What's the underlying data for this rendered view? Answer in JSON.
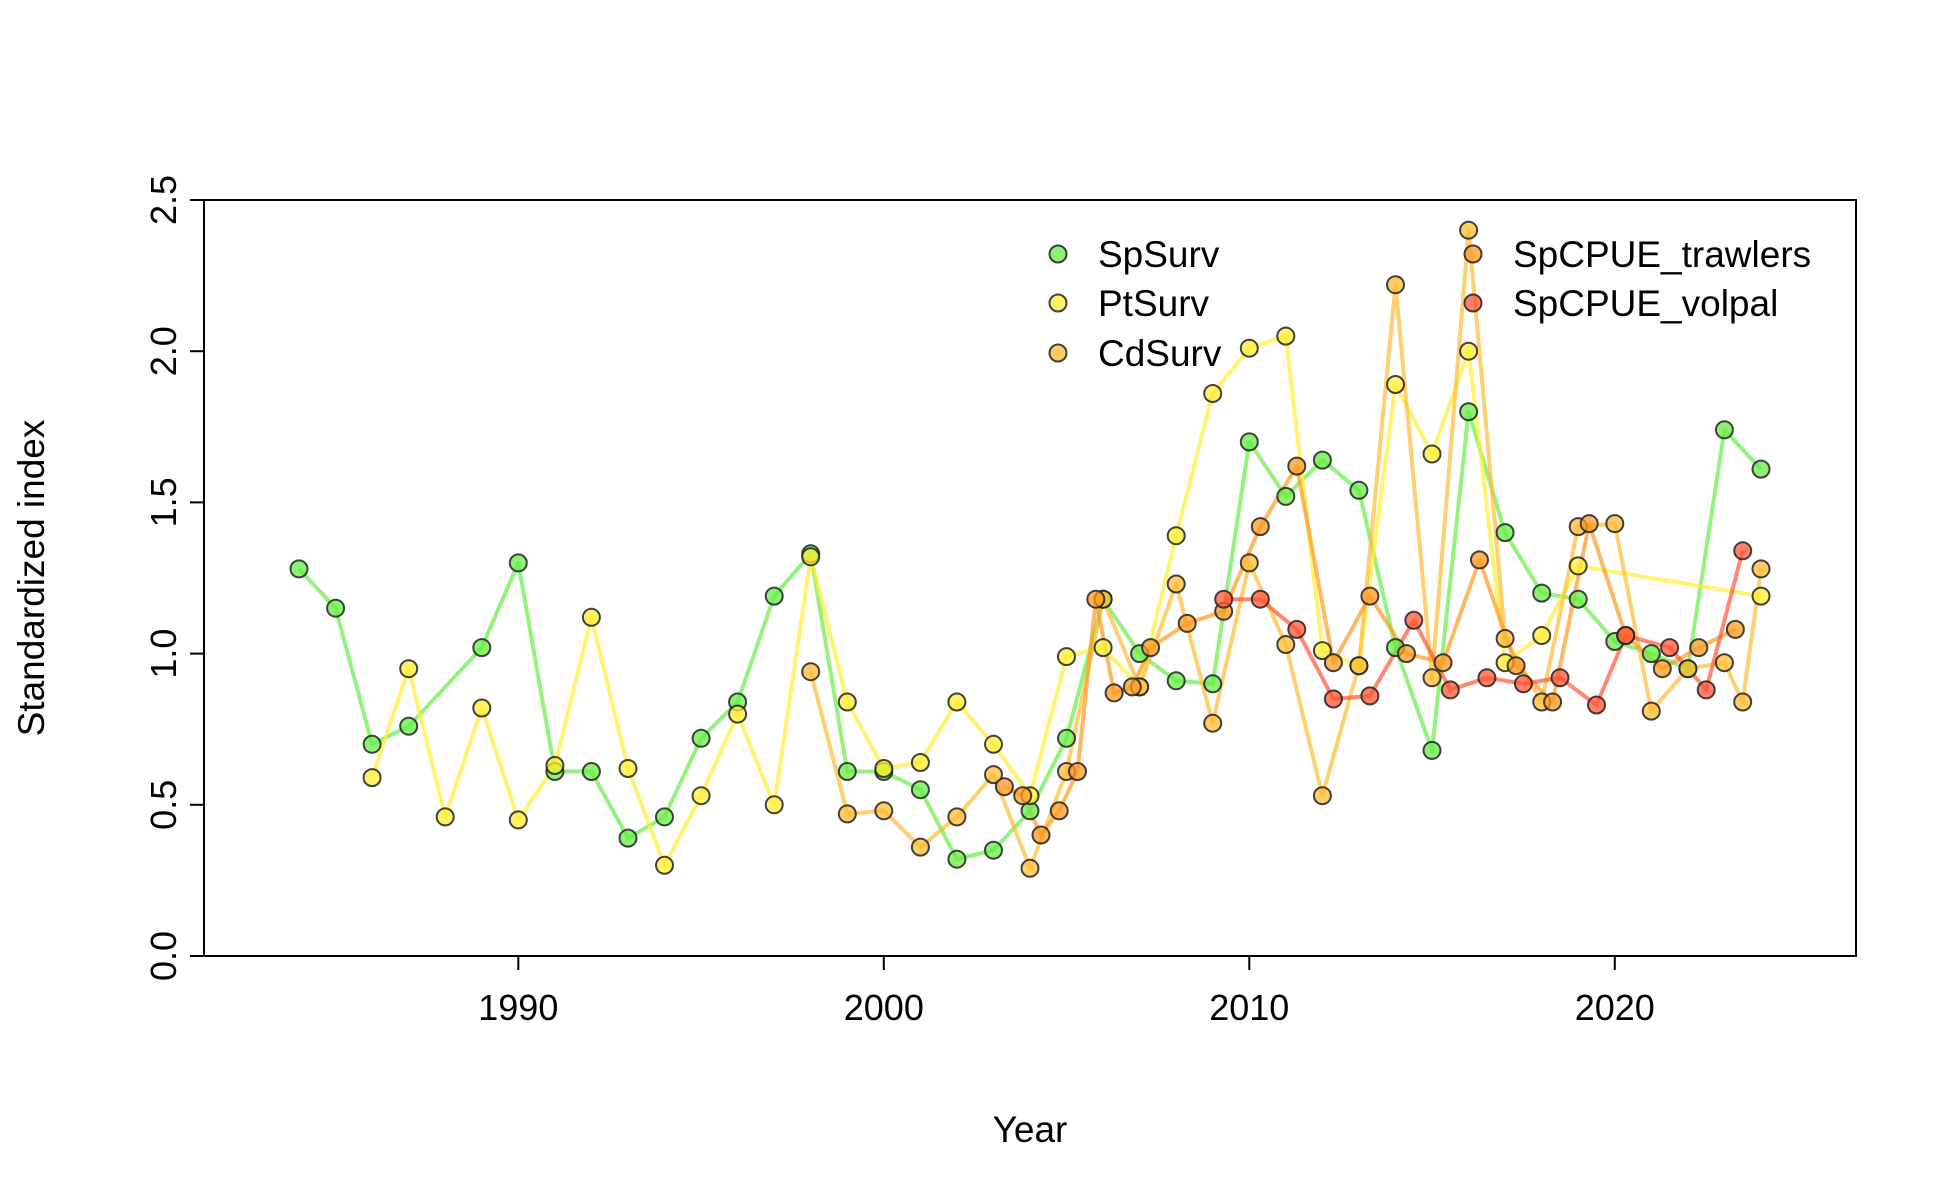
{
  "chart_data": {
    "type": "line",
    "title": "",
    "xlabel": "Year",
    "ylabel": "Standardized index",
    "xlim": [
      1981.4,
      2026.6
    ],
    "ylim": [
      0,
      2.5
    ],
    "x_ticks": [
      1990,
      2000,
      2010,
      2020
    ],
    "y_ticks": [
      0.0,
      0.5,
      1.0,
      1.5,
      2.0,
      2.5
    ],
    "x_tick_labels": [
      "1990",
      "2000",
      "2010",
      "2020"
    ],
    "y_tick_labels": [
      "0.0",
      "0.5",
      "1.0",
      "1.5",
      "2.0",
      "2.5"
    ],
    "grid": false,
    "legend_position": "top-right",
    "series": [
      {
        "name": "SpSurv",
        "color": "#66ee44",
        "x": [
          1984,
          1985,
          1986,
          1987,
          1989,
          1990,
          1991,
          1992,
          1993,
          1994,
          1995,
          1996,
          1997,
          1998,
          1999,
          2000,
          2001,
          2002,
          2003,
          2004,
          2005,
          2006,
          2007,
          2008,
          2009,
          2010,
          2011,
          2012,
          2013,
          2014,
          2015,
          2016,
          2017,
          2018,
          2019,
          2020,
          2021,
          2022,
          2023,
          2024
        ],
        "y": [
          1.28,
          1.15,
          0.7,
          0.76,
          1.02,
          1.3,
          0.61,
          0.61,
          0.39,
          0.46,
          0.72,
          0.84,
          1.19,
          1.33,
          0.61,
          0.61,
          0.55,
          0.32,
          0.35,
          0.48,
          0.72,
          1.18,
          1.0,
          0.91,
          0.9,
          1.7,
          1.52,
          1.64,
          1.54,
          1.02,
          0.68,
          1.8,
          1.4,
          1.2,
          1.18,
          1.04,
          1.0,
          0.95,
          1.74,
          1.61
        ]
      },
      {
        "name": "PtSurv",
        "color": "#ffee33",
        "x": [
          1986,
          1987,
          1988,
          1989,
          1990,
          1991,
          1992,
          1993,
          1994,
          1995,
          1996,
          1997,
          1998,
          1999,
          2000,
          2001,
          2002,
          2003,
          2004,
          2005,
          2006,
          2007,
          2008,
          2009,
          2010,
          2011,
          2012,
          2013,
          2014,
          2015,
          2016,
          2017,
          2018,
          2019,
          2024
        ],
        "y": [
          0.59,
          0.95,
          0.46,
          0.82,
          0.45,
          0.63,
          1.12,
          0.62,
          0.3,
          0.53,
          0.8,
          0.5,
          1.32,
          0.84,
          0.62,
          0.64,
          0.84,
          0.7,
          0.53,
          0.99,
          1.02,
          0.89,
          1.39,
          1.86,
          2.01,
          2.05,
          1.01,
          0.96,
          1.89,
          1.66,
          2.0,
          0.97,
          1.06,
          1.29,
          1.19
        ]
      },
      {
        "name": "CdSurv",
        "color": "#ffbb33",
        "x": [
          1998,
          1999,
          2000,
          2001,
          2002,
          2003,
          2004,
          2005,
          2006,
          2007,
          2008,
          2009,
          2010,
          2011,
          2012,
          2013,
          2014,
          2015,
          2016,
          2017,
          2018,
          2019,
          2020,
          2021,
          2022,
          2023,
          2023.5,
          2024
        ],
        "y": [
          0.94,
          0.47,
          0.48,
          0.36,
          0.46,
          0.6,
          0.29,
          0.61,
          1.18,
          0.89,
          1.23,
          0.77,
          1.3,
          1.03,
          0.53,
          0.96,
          2.22,
          0.92,
          2.4,
          1.05,
          0.84,
          1.42,
          1.43,
          0.81,
          0.95,
          0.97,
          0.84,
          1.28
        ]
      },
      {
        "name": "SpCPUE_trawlers",
        "color": "#ff9922",
        "x": [
          2003.3,
          2003.8,
          2004.3,
          2004.8,
          2005.3,
          2005.8,
          2006.3,
          2006.8,
          2007.3,
          2008.3,
          2009.3,
          2010.3,
          2011.3,
          2012.3,
          2013.3,
          2014.3,
          2015.3,
          2016.3,
          2017.3,
          2018.3,
          2019.3,
          2020.3,
          2021.3,
          2022.3,
          2023.3
        ],
        "y": [
          0.56,
          0.53,
          0.4,
          0.48,
          0.61,
          1.18,
          0.87,
          0.89,
          1.02,
          1.1,
          1.14,
          1.42,
          1.62,
          0.97,
          1.19,
          1.0,
          0.97,
          1.31,
          0.96,
          0.84,
          1.43,
          1.06,
          0.95,
          1.02,
          1.08
        ]
      },
      {
        "name": "SpCPUE_volpal",
        "color": "#ff5533",
        "x": [
          2009.3,
          2010.3,
          2011.3,
          2012.3,
          2013.3,
          2014.5,
          2015.5,
          2016.5,
          2017.5,
          2018.5,
          2019.5,
          2020.3,
          2021.5,
          2022.5,
          2023.5
        ],
        "y": [
          1.18,
          1.18,
          1.08,
          0.85,
          0.86,
          1.11,
          0.88,
          0.92,
          0.9,
          0.92,
          0.83,
          1.06,
          1.02,
          0.88,
          1.34
        ]
      }
    ]
  }
}
